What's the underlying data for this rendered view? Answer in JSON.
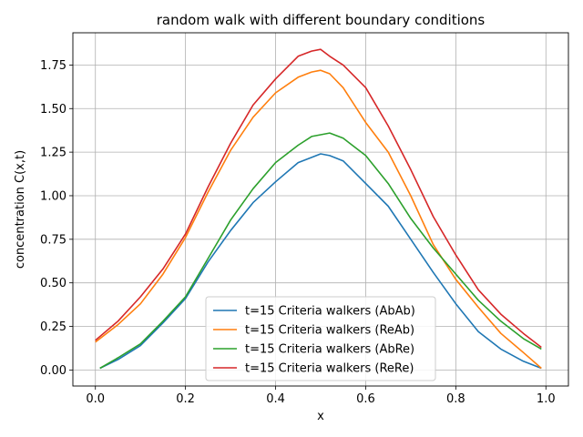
{
  "chart_data": {
    "type": "line",
    "title": "random walk with different boundary conditions",
    "xlabel": "x",
    "ylabel": "concentration C(x,t)",
    "xlim": [
      -0.05,
      1.05
    ],
    "ylim": [
      -0.092,
      1.935
    ],
    "xticks": [
      0.0,
      0.2,
      0.4,
      0.6,
      0.8,
      1.0
    ],
    "xtick_labels": [
      "0.0",
      "0.2",
      "0.4",
      "0.6",
      "0.8",
      "1.0"
    ],
    "yticks": [
      0.0,
      0.25,
      0.5,
      0.75,
      1.0,
      1.25,
      1.5,
      1.75
    ],
    "ytick_labels": [
      "0.00",
      "0.25",
      "0.50",
      "0.75",
      "1.00",
      "1.25",
      "1.50",
      "1.75"
    ],
    "grid": true,
    "legend_position": "lower-center",
    "series": [
      {
        "name": "t=15 Criteria walkers (AbAb)",
        "color": "#1f77b4",
        "x": [
          0.01,
          0.05,
          0.1,
          0.15,
          0.2,
          0.25,
          0.3,
          0.35,
          0.4,
          0.45,
          0.48,
          0.5,
          0.52,
          0.55,
          0.6,
          0.65,
          0.7,
          0.75,
          0.8,
          0.85,
          0.9,
          0.95,
          0.99
        ],
        "y": [
          0.01,
          0.06,
          0.14,
          0.27,
          0.41,
          0.62,
          0.8,
          0.96,
          1.08,
          1.19,
          1.22,
          1.24,
          1.23,
          1.2,
          1.07,
          0.94,
          0.75,
          0.56,
          0.38,
          0.22,
          0.12,
          0.05,
          0.01
        ]
      },
      {
        "name": "t=15 Criteria walkers (ReAb)",
        "color": "#ff7f0e",
        "x": [
          0.0,
          0.05,
          0.1,
          0.15,
          0.2,
          0.25,
          0.3,
          0.35,
          0.4,
          0.45,
          0.48,
          0.5,
          0.52,
          0.55,
          0.6,
          0.65,
          0.7,
          0.75,
          0.8,
          0.85,
          0.9,
          0.95,
          0.99
        ],
        "y": [
          0.16,
          0.26,
          0.38,
          0.55,
          0.76,
          1.02,
          1.26,
          1.45,
          1.59,
          1.68,
          1.71,
          1.72,
          1.7,
          1.62,
          1.42,
          1.25,
          1.0,
          0.72,
          0.52,
          0.36,
          0.21,
          0.1,
          0.01
        ]
      },
      {
        "name": "t=15 Criteria walkers (AbRe)",
        "color": "#2ca02c",
        "x": [
          0.01,
          0.05,
          0.1,
          0.15,
          0.2,
          0.25,
          0.3,
          0.35,
          0.4,
          0.45,
          0.48,
          0.5,
          0.52,
          0.55,
          0.6,
          0.65,
          0.7,
          0.75,
          0.8,
          0.85,
          0.9,
          0.95,
          0.99
        ],
        "y": [
          0.01,
          0.07,
          0.15,
          0.28,
          0.42,
          0.64,
          0.86,
          1.04,
          1.19,
          1.29,
          1.34,
          1.35,
          1.36,
          1.33,
          1.23,
          1.07,
          0.87,
          0.7,
          0.55,
          0.4,
          0.28,
          0.18,
          0.12
        ]
      },
      {
        "name": "t=15 Criteria walkers (ReRe)",
        "color": "#d62728",
        "x": [
          0.0,
          0.05,
          0.1,
          0.15,
          0.2,
          0.25,
          0.3,
          0.35,
          0.4,
          0.45,
          0.48,
          0.5,
          0.52,
          0.55,
          0.6,
          0.65,
          0.7,
          0.75,
          0.8,
          0.85,
          0.9,
          0.95,
          0.99
        ],
        "y": [
          0.17,
          0.28,
          0.42,
          0.58,
          0.78,
          1.05,
          1.3,
          1.52,
          1.67,
          1.8,
          1.83,
          1.84,
          1.8,
          1.75,
          1.62,
          1.4,
          1.15,
          0.88,
          0.66,
          0.46,
          0.32,
          0.21,
          0.13
        ]
      }
    ]
  }
}
